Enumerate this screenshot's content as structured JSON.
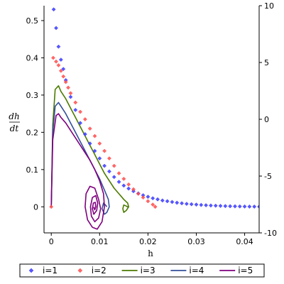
{
  "chart_data": {
    "type": "scatter",
    "xlabel": "h",
    "ylabel_num": "dh",
    "ylabel_den": "dt",
    "xlim": [
      -0.0015,
      0.043
    ],
    "ylim_left": [
      -0.07,
      0.54
    ],
    "ylim_right": [
      -10,
      10
    ],
    "x_ticks": [
      0,
      0.01,
      0.02,
      0.03,
      0.04
    ],
    "x_tick_labels": [
      "0",
      "0.01",
      "0.02",
      "0.03",
      "0.04"
    ],
    "y_left_ticks": [
      0,
      0.1,
      0.2,
      0.3,
      0.4,
      0.5
    ],
    "y_left_tick_labels": [
      "0",
      "0.1",
      "0.2",
      "0.3",
      "0.4",
      "0.5"
    ],
    "y_right_ticks": [
      10,
      5,
      0,
      -5,
      -10
    ],
    "y_right_tick_labels": [
      "10",
      "5",
      "0",
      "-5",
      "-10"
    ],
    "grid": false,
    "legend_position": "bottom",
    "series": [
      {
        "name": "i=1",
        "style": "diamonds",
        "color": "#3b3bff",
        "x": [
          0.0005,
          0.001,
          0.0015,
          0.002,
          0.0025,
          0.003,
          0.004,
          0.005,
          0.006,
          0.007,
          0.008,
          0.009,
          0.01,
          0.011,
          0.012,
          0.013,
          0.014,
          0.015,
          0.016,
          0.017,
          0.018,
          0.019,
          0.02,
          0.021,
          0.022,
          0.023,
          0.024,
          0.025,
          0.026,
          0.027,
          0.028,
          0.029,
          0.03,
          0.031,
          0.032,
          0.033,
          0.034,
          0.035,
          0.036,
          0.037,
          0.038,
          0.039,
          0.04,
          0.041,
          0.042,
          0.043
        ],
        "y": [
          0.53,
          0.48,
          0.43,
          0.395,
          0.37,
          0.34,
          0.295,
          0.26,
          0.225,
          0.195,
          0.17,
          0.15,
          0.13,
          0.11,
          0.095,
          0.08,
          0.067,
          0.057,
          0.049,
          0.042,
          0.036,
          0.031,
          0.027,
          0.023,
          0.02,
          0.017,
          0.015,
          0.013,
          0.011,
          0.0095,
          0.008,
          0.007,
          0.006,
          0.005,
          0.0042,
          0.0035,
          0.003,
          0.0025,
          0.002,
          0.0016,
          0.0013,
          0.001,
          0.0008,
          0.0006,
          0.0005,
          0.0004
        ]
      },
      {
        "name": "i=2",
        "style": "diamonds",
        "color": "#ff4d4d",
        "x": [
          0.0,
          0.0004,
          0.001,
          0.0015,
          0.002,
          0.0025,
          0.003,
          0.0035,
          0.004,
          0.005,
          0.006,
          0.007,
          0.008,
          0.009,
          0.01,
          0.011,
          0.012,
          0.013,
          0.014,
          0.015,
          0.016,
          0.017,
          0.018,
          0.019,
          0.02,
          0.021,
          0.0215
        ],
        "y": [
          0.0,
          0.4,
          0.39,
          0.38,
          0.365,
          0.35,
          0.335,
          0.32,
          0.305,
          0.28,
          0.255,
          0.235,
          0.21,
          0.19,
          0.17,
          0.15,
          0.13,
          0.11,
          0.09,
          0.075,
          0.06,
          0.047,
          0.035,
          0.025,
          0.015,
          0.006,
          0.0
        ]
      },
      {
        "name": "i=3",
        "style": "line",
        "color": "#4b7a00",
        "x": [
          0.0,
          0.0003,
          0.0008,
          0.0015,
          0.002,
          0.003,
          0.004,
          0.005,
          0.006,
          0.007,
          0.008,
          0.009,
          0.01,
          0.011,
          0.012,
          0.013,
          0.014,
          0.015,
          0.0158,
          0.016,
          0.0155,
          0.015,
          0.0148,
          0.015,
          0.0155,
          0.016
        ],
        "y": [
          0.0,
          0.22,
          0.315,
          0.325,
          0.31,
          0.29,
          0.265,
          0.24,
          0.215,
          0.19,
          0.165,
          0.14,
          0.115,
          0.09,
          0.07,
          0.05,
          0.035,
          0.02,
          0.01,
          0.0,
          -0.01,
          -0.015,
          -0.005,
          0.005,
          0.002,
          -0.002
        ]
      },
      {
        "name": "i=4",
        "style": "line",
        "color": "#334f99",
        "x": [
          0.0,
          0.0003,
          0.0008,
          0.0015,
          0.002,
          0.003,
          0.004,
          0.005,
          0.006,
          0.007,
          0.008,
          0.009,
          0.01,
          0.011,
          0.0118,
          0.012,
          0.0115,
          0.011,
          0.0105,
          0.0108,
          0.0112,
          0.0115
        ],
        "y": [
          0.0,
          0.2,
          0.27,
          0.28,
          0.27,
          0.25,
          0.225,
          0.2,
          0.175,
          0.15,
          0.125,
          0.1,
          0.075,
          0.045,
          0.02,
          0.0,
          -0.015,
          -0.02,
          -0.005,
          0.01,
          0.005,
          0.0
        ]
      },
      {
        "name": "i=5",
        "style": "line",
        "color": "#7f007f",
        "x": [
          0.0,
          0.0003,
          0.001,
          0.0015,
          0.002,
          0.003,
          0.004,
          0.005,
          0.006,
          0.007,
          0.008,
          0.009,
          0.01,
          0.0108,
          0.011,
          0.0105,
          0.0095,
          0.0085,
          0.0075,
          0.007,
          0.0072,
          0.008,
          0.009,
          0.0098,
          0.0102,
          0.0098,
          0.009,
          0.0083,
          0.0081,
          0.0085,
          0.0092,
          0.0096,
          0.0094,
          0.0088,
          0.0085,
          0.0087,
          0.0091,
          0.0092,
          0.009,
          0.0088,
          0.0089
        ],
        "y": [
          0.0,
          0.18,
          0.245,
          0.25,
          0.24,
          0.225,
          0.205,
          0.185,
          0.165,
          0.145,
          0.125,
          0.1,
          0.07,
          0.035,
          0.0,
          -0.04,
          -0.06,
          -0.055,
          -0.035,
          0.0,
          0.035,
          0.055,
          0.05,
          0.02,
          -0.005,
          -0.03,
          -0.04,
          -0.025,
          0.0,
          0.025,
          0.03,
          0.01,
          -0.01,
          -0.02,
          -0.005,
          0.01,
          0.012,
          0.0,
          -0.008,
          -0.003,
          0.0
        ]
      }
    ],
    "legend": [
      "i=1",
      "i=2",
      "i=3",
      "i=4",
      "i=5"
    ]
  }
}
